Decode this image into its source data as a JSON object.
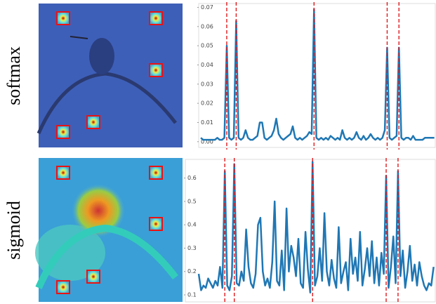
{
  "chart_data": [
    {
      "type": "line",
      "label": "softmax",
      "color": "#1f77b4",
      "vline_color": "#e0191c",
      "values": [
        0.002,
        0.001,
        0.001,
        0.001,
        0.001,
        0.001,
        0.001,
        0.002,
        0.001,
        0.001,
        0.002,
        0.05,
        0.002,
        0.001,
        0.002,
        0.063,
        0.002,
        0.001,
        0.002,
        0.006,
        0.002,
        0.001,
        0.001,
        0.002,
        0.003,
        0.01,
        0.01,
        0.002,
        0.001,
        0.002,
        0.003,
        0.006,
        0.012,
        0.004,
        0.002,
        0.001,
        0.002,
        0.003,
        0.004,
        0.008,
        0.002,
        0.001,
        0.002,
        0.001,
        0.002,
        0.003,
        0.005,
        0.004,
        0.069,
        0.002,
        0.001,
        0.002,
        0.001,
        0.002,
        0.001,
        0.003,
        0.002,
        0.001,
        0.002,
        0.001,
        0.006,
        0.002,
        0.001,
        0.002,
        0.001,
        0.002,
        0.005,
        0.002,
        0.001,
        0.003,
        0.001,
        0.002,
        0.004,
        0.002,
        0.001,
        0.002,
        0.001,
        0.002,
        0.006,
        0.049,
        0.002,
        0.001,
        0.002,
        0.003,
        0.049,
        0.002,
        0.001,
        0.002,
        0.002,
        0.001,
        0.003,
        0.001,
        0.001,
        0.001,
        0.001,
        0.002,
        0.002,
        0.002,
        0.002,
        0.002
      ],
      "vlines": [
        11,
        15,
        48,
        79,
        84
      ],
      "ylim": [
        -0.003,
        0.072
      ],
      "yticks": [
        {
          "value": 0,
          "label": "0.00"
        },
        {
          "value": 0.01,
          "label": "0.01"
        },
        {
          "value": 0.02,
          "label": "0.02"
        },
        {
          "value": 0.03,
          "label": "0.03"
        },
        {
          "value": 0.04,
          "label": "0.04"
        },
        {
          "value": 0.05,
          "label": "0.05"
        },
        {
          "value": 0.06,
          "label": "0.06"
        },
        {
          "value": 0.07,
          "label": "0.07"
        }
      ]
    },
    {
      "type": "line",
      "label": "sigmoid",
      "color": "#1f77b4",
      "vline_color": "#e0191c",
      "values": [
        0.19,
        0.12,
        0.14,
        0.13,
        0.17,
        0.15,
        0.13,
        0.16,
        0.14,
        0.22,
        0.13,
        0.63,
        0.14,
        0.12,
        0.18,
        0.66,
        0.15,
        0.14,
        0.2,
        0.16,
        0.38,
        0.22,
        0.15,
        0.13,
        0.19,
        0.4,
        0.43,
        0.2,
        0.14,
        0.17,
        0.13,
        0.24,
        0.5,
        0.16,
        0.14,
        0.29,
        0.12,
        0.47,
        0.2,
        0.31,
        0.26,
        0.18,
        0.34,
        0.15,
        0.13,
        0.37,
        0.21,
        0.11,
        0.67,
        0.14,
        0.18,
        0.3,
        0.16,
        0.45,
        0.2,
        0.14,
        0.25,
        0.17,
        0.13,
        0.39,
        0.15,
        0.2,
        0.24,
        0.12,
        0.34,
        0.19,
        0.26,
        0.16,
        0.37,
        0.14,
        0.21,
        0.3,
        0.18,
        0.33,
        0.15,
        0.26,
        0.14,
        0.28,
        0.19,
        0.61,
        0.13,
        0.22,
        0.35,
        0.15,
        0.63,
        0.18,
        0.29,
        0.13,
        0.2,
        0.31,
        0.16,
        0.23,
        0.14,
        0.24,
        0.18,
        0.14,
        0.12,
        0.15,
        0.14,
        0.22
      ],
      "vlines": [
        11,
        15,
        48,
        79,
        84
      ],
      "ylim": [
        0.07,
        0.68
      ],
      "yticks": [
        0.1,
        0.2,
        0.3,
        0.4,
        0.5,
        0.6
      ]
    }
  ]
}
